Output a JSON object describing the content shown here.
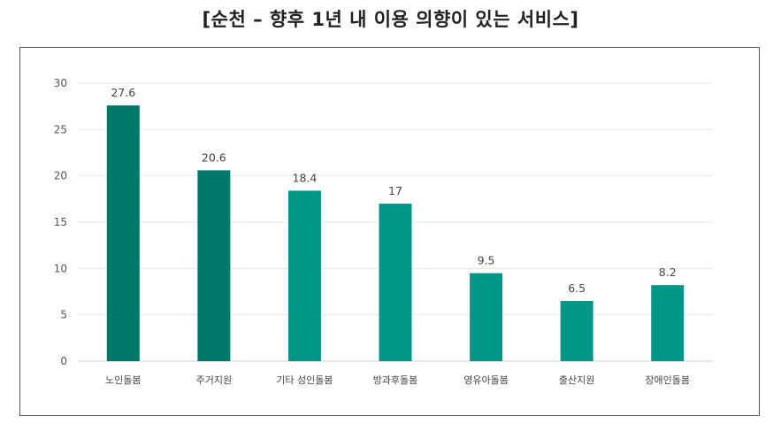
{
  "chart_data": {
    "type": "bar",
    "title": "[순천 – 향후 1년 내 이용 의향이 있는 서비스]",
    "categories": [
      "노인돌봄",
      "주거지원",
      "기타 성인돌봄",
      "방과후돌봄",
      "영유아돌봄",
      "출산지원",
      "장애인돌봄"
    ],
    "values": [
      27.6,
      20.6,
      18.4,
      17,
      9.5,
      6.5,
      8.2
    ],
    "value_labels": [
      "27.6",
      "20.6",
      "18.4",
      "17",
      "9.5",
      "6.5",
      "8.2"
    ],
    "yticks": [
      "0",
      "5",
      "10",
      "15",
      "20",
      "25",
      "30"
    ],
    "ylim": [
      0,
      30
    ],
    "grid": true,
    "legend": "none",
    "colors": {
      "highlight": "#00796b",
      "default": "#009688",
      "grid": "#e6e6e6",
      "axis": "#cccccc"
    },
    "highlight_count": 2
  }
}
